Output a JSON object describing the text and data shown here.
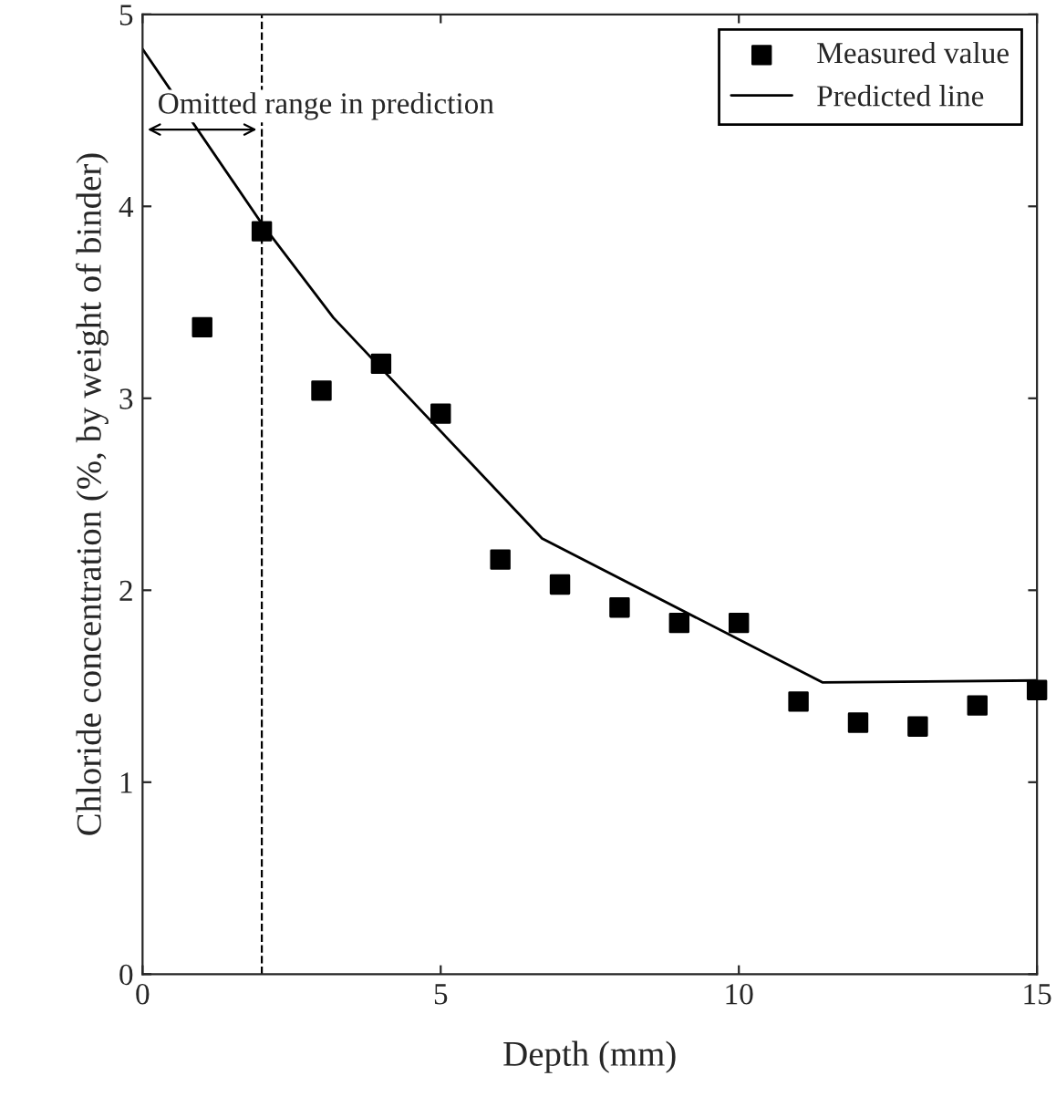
{
  "chart_data": {
    "type": "scatter",
    "xlabel": "Depth (mm)",
    "ylabel": "Chloride concentration (%, by weight of binder)",
    "xlim": [
      0,
      15
    ],
    "ylim": [
      0,
      5
    ],
    "xticks": [
      0,
      5,
      10,
      15
    ],
    "yticks": [
      0,
      1,
      2,
      3,
      4,
      5
    ],
    "grid": false,
    "legend": "top right",
    "series": [
      {
        "name": "Measured value",
        "marker": "square",
        "color": "#000000",
        "x": [
          1,
          2,
          3,
          4,
          5,
          6,
          7,
          8,
          9,
          10,
          11,
          12,
          13,
          14,
          15
        ],
        "values": [
          3.37,
          3.87,
          3.04,
          3.18,
          2.92,
          2.16,
          2.03,
          1.91,
          1.83,
          1.83,
          1.42,
          1.31,
          1.29,
          1.4,
          1.48
        ]
      },
      {
        "name": "Predicted line",
        "type": "line",
        "marker": "none",
        "line_style": "solid",
        "color": "#000000",
        "x": [
          0,
          2,
          3.2,
          6.7,
          11.4,
          15
        ],
        "values": [
          4.82,
          3.91,
          3.42,
          2.27,
          1.52,
          1.53
        ]
      }
    ],
    "ref_lines": [
      {
        "axis": "x",
        "value": 2,
        "line_style": "dashed",
        "color": "#000000"
      }
    ],
    "annotations": [
      {
        "text": "Omitted range in prediction",
        "x": 1,
        "y": 4.4
      }
    ]
  }
}
